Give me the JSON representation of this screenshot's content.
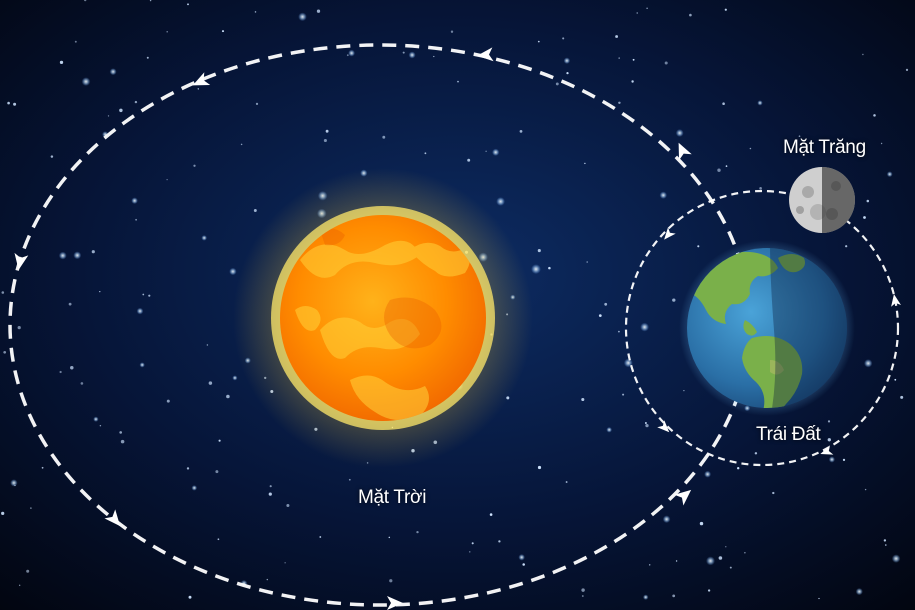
{
  "labels": {
    "sun": "Mặt Trời",
    "earth": "Trái Đất",
    "moon": "Mặt Trăng"
  },
  "colors": {
    "space_center": "#0c2a5e",
    "space_edge": "#02050f",
    "orbit_line": "#ffffff",
    "sun_core": "#ff8a00",
    "sun_glow": "#ffe14d",
    "earth_ocean": "#2f7fb8",
    "earth_land": "#7ab04a",
    "moon": "#d8d8d8"
  },
  "icons": [
    "sun-icon",
    "earth-icon",
    "moon-icon",
    "orbit-direction-arrow-icon"
  ]
}
